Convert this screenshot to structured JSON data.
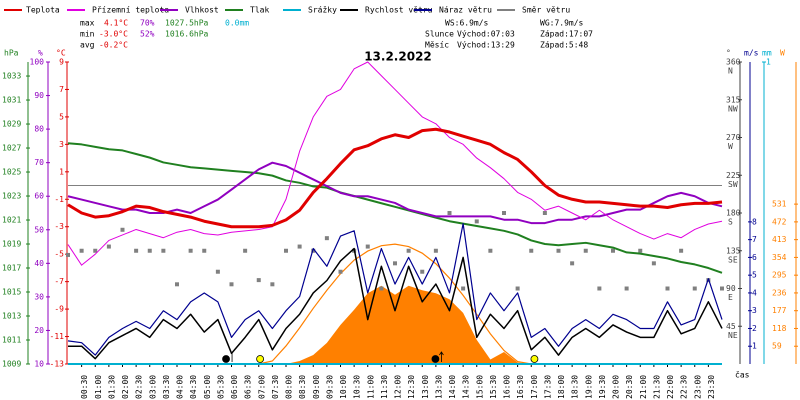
{
  "chart_data": {
    "type": "line",
    "title": "13.2.2022",
    "x": [
      0,
      0.5,
      1,
      1.5,
      2,
      2.5,
      3,
      3.5,
      4,
      4.5,
      5,
      5.5,
      6,
      6.5,
      7,
      7.5,
      8,
      8.5,
      9,
      9.5,
      10,
      10.5,
      11,
      11.5,
      12,
      12.5,
      13,
      13.5,
      14,
      14.5,
      15,
      15.5,
      16,
      16.5,
      17,
      17.5,
      18,
      18.5,
      19,
      19.5,
      20,
      20.5,
      21,
      21.5,
      22,
      22.5,
      23,
      23.5,
      24
    ],
    "xlim": [
      0,
      24
    ],
    "xticks": [
      {
        "value": 0.5,
        "label": "00:30"
      },
      {
        "value": 1,
        "label": "01:00"
      },
      {
        "value": 1.5,
        "label": "01:30"
      },
      {
        "value": 2,
        "label": "02:00"
      },
      {
        "value": 2.5,
        "label": "02:30"
      },
      {
        "value": 3,
        "label": "03:00"
      },
      {
        "value": 3.5,
        "label": "03:30"
      },
      {
        "value": 4,
        "label": "04:00"
      },
      {
        "value": 4.5,
        "label": "04:30"
      },
      {
        "value": 5,
        "label": "05:00"
      },
      {
        "value": 5.5,
        "label": "05:30"
      },
      {
        "value": 6,
        "label": "06:00"
      },
      {
        "value": 6.5,
        "label": "06:30"
      },
      {
        "value": 7,
        "label": "07:00"
      },
      {
        "value": 7.5,
        "label": "07:30"
      },
      {
        "value": 8,
        "label": "08:00"
      },
      {
        "value": 8.5,
        "label": "08:30"
      },
      {
        "value": 9,
        "label": "09:00"
      },
      {
        "value": 9.5,
        "label": "09:30"
      },
      {
        "value": 10,
        "label": "10:00"
      },
      {
        "value": 10.5,
        "label": "10:30"
      },
      {
        "value": 11,
        "label": "11:00"
      },
      {
        "value": 11.5,
        "label": "11:30"
      },
      {
        "value": 12,
        "label": "12:00"
      },
      {
        "value": 12.5,
        "label": "12:30"
      },
      {
        "value": 13,
        "label": "13:00"
      },
      {
        "value": 13.5,
        "label": "13:30"
      },
      {
        "value": 14,
        "label": "14:00"
      },
      {
        "value": 14.5,
        "label": "14:30"
      },
      {
        "value": 15,
        "label": "15:00"
      },
      {
        "value": 15.5,
        "label": "15:30"
      },
      {
        "value": 16,
        "label": "16:00"
      },
      {
        "value": 16.5,
        "label": "16:30"
      },
      {
        "value": 17,
        "label": "17:00"
      },
      {
        "value": 17.5,
        "label": "17:30"
      },
      {
        "value": 18,
        "label": "18:00"
      },
      {
        "value": 18.5,
        "label": "18:30"
      },
      {
        "value": 19,
        "label": "19:00"
      },
      {
        "value": 19.5,
        "label": "19:30"
      },
      {
        "value": 20,
        "label": "20:00"
      },
      {
        "value": 20.5,
        "label": "20:30"
      },
      {
        "value": 21,
        "label": "21:00"
      },
      {
        "value": 21.5,
        "label": "21:30"
      },
      {
        "value": 22,
        "label": "22:00"
      },
      {
        "value": 22.5,
        "label": "22:30"
      },
      {
        "value": 23,
        "label": "23:00"
      },
      {
        "value": 23.5,
        "label": "23:30"
      }
    ],
    "x_label": "čas",
    "axes": {
      "hpa": {
        "header": "hPa",
        "color": "#208020",
        "lim": [
          1009,
          1034.17
        ],
        "ticks": [
          1009,
          1011,
          1013,
          1015,
          1017,
          1019,
          1021,
          1023,
          1025,
          1027,
          1029,
          1031,
          1033
        ]
      },
      "pct": {
        "header": "%",
        "color": "#9000c0",
        "lim": [
          10,
          100
        ],
        "ticks": [
          10,
          20,
          30,
          40,
          50,
          60,
          70,
          80,
          90,
          100
        ]
      },
      "temp": {
        "header": "°C",
        "color": "#e00000",
        "lim": [
          -13,
          9
        ],
        "ticks": [
          -13,
          -11,
          -9,
          -7,
          -5,
          -3,
          -1,
          1,
          3,
          5,
          7,
          9
        ]
      },
      "dir": {
        "header": "°",
        "color": "#404040",
        "lim": [
          0,
          360
        ],
        "ticks": [
          45,
          90,
          135,
          180,
          225,
          270,
          315,
          360
        ],
        "compass": [
          "NE",
          "E",
          "SE",
          "S",
          "SW",
          "W",
          "NW",
          "N"
        ]
      },
      "ms": {
        "header": "m/s",
        "color": "#000090",
        "lim": [
          0,
          17
        ],
        "ticks": [
          1,
          2,
          3,
          4,
          5,
          6,
          7,
          8
        ]
      },
      "mm": {
        "header": "mm",
        "color": "#00b0d0",
        "lim": [
          0,
          1
        ],
        "ticks": [
          1
        ]
      },
      "w": {
        "header": "W",
        "color": "#ff8000",
        "lim": [
          0,
          1003
        ],
        "ticks": [
          59,
          118,
          177,
          236,
          295,
          354,
          413,
          472,
          531
        ]
      }
    },
    "series": [
      {
        "name": "Teplota",
        "color": "#e00000",
        "axis": "temp",
        "width": 3,
        "values": [
          -1.4,
          -2.0,
          -2.3,
          -2.2,
          -1.9,
          -1.5,
          -1.6,
          -1.9,
          -2.1,
          -2.3,
          -2.6,
          -2.8,
          -3.0,
          -3.0,
          -3.0,
          -2.9,
          -2.5,
          -1.8,
          -0.5,
          0.5,
          1.6,
          2.6,
          2.9,
          3.4,
          3.7,
          3.5,
          4.0,
          4.1,
          3.9,
          3.6,
          3.3,
          3.0,
          2.4,
          1.9,
          1.0,
          0.0,
          -0.7,
          -1.0,
          -1.2,
          -1.2,
          -1.3,
          -1.4,
          -1.5,
          -1.5,
          -1.6,
          -1.4,
          -1.3,
          -1.3,
          -1.2
        ]
      },
      {
        "name": "Přízemní teplota",
        "color": "#e000e0",
        "axis": "temp",
        "width": 1,
        "values": [
          -4.3,
          -5.8,
          -5.0,
          -4.0,
          -3.6,
          -3.2,
          -3.5,
          -3.8,
          -3.4,
          -3.2,
          -3.5,
          -3.6,
          -3.4,
          -3.3,
          -3.2,
          -3.0,
          -1.0,
          2.5,
          5.0,
          6.5,
          7.0,
          8.5,
          9.0,
          8.0,
          7.0,
          6.0,
          5.0,
          4.5,
          3.5,
          3.0,
          2.0,
          1.3,
          0.5,
          -0.5,
          -1.0,
          -1.8,
          -1.5,
          -2.0,
          -2.5,
          -1.8,
          -2.5,
          -3.0,
          -3.5,
          -3.9,
          -3.5,
          -3.8,
          -3.2,
          -2.8,
          -2.6
        ]
      },
      {
        "name": "Vlhkost",
        "color": "#9000c0",
        "axis": "pct",
        "width": 2,
        "values": [
          60,
          59,
          58,
          57,
          56,
          56,
          55,
          55,
          56,
          55,
          57,
          59,
          62,
          65,
          68,
          70,
          69,
          67,
          65,
          63,
          61,
          60,
          60,
          59,
          58,
          56,
          55,
          54,
          54,
          54,
          54,
          54,
          53,
          53,
          52,
          52,
          53,
          53,
          54,
          54,
          55,
          56,
          56,
          58,
          60,
          61,
          60,
          58,
          57
        ]
      },
      {
        "name": "Tlak",
        "color": "#208020",
        "axis": "hpa",
        "width": 2,
        "values": [
          1027.4,
          1027.3,
          1027.1,
          1026.9,
          1026.8,
          1026.5,
          1026.2,
          1025.8,
          1025.6,
          1025.4,
          1025.3,
          1025.2,
          1025.1,
          1025.0,
          1024.9,
          1024.7,
          1024.3,
          1024.1,
          1023.8,
          1023.7,
          1023.3,
          1023.0,
          1022.7,
          1022.4,
          1022.1,
          1021.8,
          1021.5,
          1021.2,
          1020.9,
          1020.7,
          1020.5,
          1020.3,
          1020.1,
          1019.8,
          1019.3,
          1019.0,
          1018.9,
          1019.0,
          1019.1,
          1018.9,
          1018.7,
          1018.3,
          1018.2,
          1018.0,
          1017.8,
          1017.5,
          1017.3,
          1017.0,
          1016.6
        ]
      },
      {
        "name": "Srážky",
        "color": "#00b0d0",
        "axis": "mm",
        "width": 2,
        "values": [
          0,
          0,
          0,
          0,
          0,
          0,
          0,
          0,
          0,
          0,
          0,
          0,
          0,
          0,
          0,
          0,
          0,
          0,
          0,
          0,
          0,
          0,
          0,
          0,
          0,
          0,
          0,
          0,
          0,
          0,
          0,
          0,
          0,
          0,
          0,
          0,
          0,
          0,
          0,
          0,
          0,
          0,
          0,
          0,
          0,
          0,
          0,
          0,
          0
        ]
      },
      {
        "name": "Rychlost větru",
        "color": "#000000",
        "axis": "ms",
        "width": 1.5,
        "values": [
          1.0,
          1.0,
          0.3,
          1.2,
          1.6,
          2.0,
          1.5,
          2.5,
          2.0,
          2.8,
          1.8,
          2.5,
          0.6,
          1.5,
          2.5,
          0.8,
          2.0,
          2.8,
          4.0,
          4.7,
          5.8,
          6.5,
          2.5,
          5.5,
          3.0,
          5.5,
          3.5,
          4.5,
          3.0,
          6.0,
          1.5,
          2.8,
          2.0,
          3.0,
          0.8,
          1.5,
          0.5,
          1.5,
          2.0,
          1.5,
          2.2,
          1.8,
          1.5,
          1.5,
          3.0,
          1.7,
          2.0,
          3.5,
          2.0
        ]
      },
      {
        "name": "Náraz větru",
        "color": "#000090",
        "axis": "ms",
        "width": 1.2,
        "values": [
          1.3,
          1.2,
          0.5,
          1.5,
          2.0,
          2.4,
          2.0,
          3.0,
          2.5,
          3.5,
          4.0,
          3.5,
          1.5,
          2.5,
          3.0,
          2.0,
          3.0,
          3.8,
          6.5,
          5.5,
          7.2,
          7.5,
          4.0,
          6.5,
          4.5,
          6.0,
          4.5,
          6.0,
          4.0,
          7.9,
          2.5,
          4.0,
          3.0,
          4.0,
          1.5,
          2.0,
          1.0,
          2.0,
          2.5,
          2.0,
          2.8,
          2.5,
          2.0,
          2.0,
          3.5,
          2.2,
          2.5,
          4.8,
          2.5
        ]
      },
      {
        "name": "Směr větru",
        "color": "#808080",
        "axis": "dir",
        "style": "squares",
        "values": [
          130,
          135,
          135,
          140,
          160,
          135,
          135,
          135,
          95,
          135,
          135,
          110,
          95,
          135,
          100,
          95,
          135,
          140,
          135,
          150,
          110,
          135,
          140,
          90,
          120,
          135,
          110,
          135,
          180,
          90,
          170,
          135,
          180,
          90,
          135,
          180,
          135,
          120,
          135,
          90,
          135,
          90,
          135,
          120,
          90,
          135,
          90,
          100,
          90
        ]
      }
    ],
    "radiation": {
      "color": "#ff8000",
      "axis": "w",
      "values": [
        0,
        0,
        0,
        0,
        0,
        0,
        0,
        0,
        0,
        0,
        0,
        0,
        0,
        0,
        0,
        0,
        0,
        10,
        30,
        70,
        130,
        180,
        235,
        260,
        230,
        260,
        245,
        235,
        215,
        170,
        80,
        15,
        40,
        5,
        0,
        0,
        0,
        0,
        0,
        0,
        0,
        0,
        0,
        0,
        0,
        0,
        0,
        0,
        0
      ]
    },
    "radiation_clear": {
      "color": "#ff8000",
      "axis": "w",
      "values": [
        0,
        0,
        0,
        0,
        0,
        0,
        0,
        0,
        0,
        0,
        0,
        0,
        0,
        0,
        0,
        10,
        60,
        120,
        185,
        245,
        300,
        345,
        375,
        393,
        398,
        390,
        368,
        333,
        285,
        228,
        165,
        100,
        45,
        8,
        0,
        0,
        0,
        0,
        0,
        0,
        0,
        0,
        0,
        0,
        0,
        0,
        0,
        0,
        0
      ]
    },
    "stats": {
      "rows": [
        {
          "label": "max",
          "temp": "4.1°C",
          "humidity": "70%",
          "pressure": "1027.5hPa",
          "precip": "0.0mm"
        },
        {
          "label": "min",
          "temp": "-3.0°C",
          "humidity": "52%",
          "pressure": "1016.6hPa"
        },
        {
          "label": "avg",
          "temp": "-0.2°C"
        }
      ],
      "ws": "WS:6.9m/s",
      "wg": "WG:7.9m/s"
    },
    "sun": {
      "label": "Slunce",
      "rise": "Východ:07:03",
      "set": "Západ:17:07"
    },
    "moon": {
      "label": "Měsíc",
      "rise": "Východ:13:29",
      "set": "Západ:5:48"
    }
  }
}
